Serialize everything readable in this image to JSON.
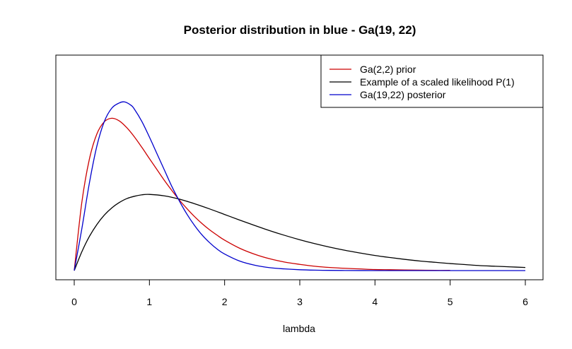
{
  "chart_data": {
    "type": "line",
    "title": "Posterior distribution in blue - Ga(19, 22)",
    "xlabel": "lambda",
    "ylabel": "",
    "xlim": [
      0,
      6
    ],
    "ylim": [
      0,
      1.0
    ],
    "x_ticks": [
      "0",
      "1",
      "2",
      "3",
      "4",
      "5",
      "6"
    ],
    "y_axis_shown": false,
    "grid": false,
    "legend_position": "top-right",
    "series": [
      {
        "name": "Ga(2,2) prior",
        "color": "#cc0000",
        "x": [
          0,
          0.1,
          0.2,
          0.3,
          0.4,
          0.5,
          0.6,
          0.7,
          0.8,
          0.9,
          1.0,
          1.1,
          1.2,
          1.3,
          1.4,
          1.5,
          1.6,
          1.7,
          1.8,
          1.9,
          2.0,
          2.2,
          2.4,
          2.6,
          2.8,
          3.0,
          3.2,
          3.4,
          3.6,
          3.8,
          4.0,
          4.2,
          4.4,
          4.6,
          4.8,
          5.0
        ],
        "y": [
          0,
          0.327,
          0.536,
          0.659,
          0.719,
          0.736,
          0.723,
          0.69,
          0.646,
          0.595,
          0.541,
          0.488,
          0.435,
          0.386,
          0.34,
          0.299,
          0.261,
          0.227,
          0.197,
          0.171,
          0.147,
          0.108,
          0.079,
          0.057,
          0.041,
          0.03,
          0.021,
          0.015,
          0.011,
          0.008,
          0.005,
          0.004,
          0.003,
          0.002,
          0.001,
          0.001
        ]
      },
      {
        "name": "Example of a scaled likelihood P(1)",
        "color": "#000000",
        "x": [
          0,
          0.1,
          0.2,
          0.3,
          0.4,
          0.5,
          0.6,
          0.7,
          0.8,
          0.9,
          1.0,
          1.2,
          1.4,
          1.6,
          1.8,
          2.0,
          2.2,
          2.4,
          2.6,
          2.8,
          3.0,
          3.2,
          3.4,
          3.6,
          3.8,
          4.0,
          4.2,
          4.4,
          4.6,
          4.8,
          5.0,
          5.2,
          5.4,
          5.6,
          5.8,
          6.0
        ],
        "y": [
          0,
          0.09,
          0.164,
          0.222,
          0.268,
          0.303,
          0.329,
          0.348,
          0.359,
          0.366,
          0.368,
          0.361,
          0.345,
          0.323,
          0.298,
          0.271,
          0.244,
          0.218,
          0.193,
          0.17,
          0.149,
          0.13,
          0.113,
          0.098,
          0.085,
          0.073,
          0.063,
          0.054,
          0.046,
          0.04,
          0.034,
          0.029,
          0.024,
          0.021,
          0.018,
          0.015
        ]
      },
      {
        "name": "Ga(19,22) posterior",
        "color": "#0000cc",
        "x": [
          0,
          0.1,
          0.2,
          0.3,
          0.4,
          0.5,
          0.6,
          0.67,
          0.75,
          0.8,
          0.9,
          1.0,
          1.1,
          1.2,
          1.3,
          1.4,
          1.5,
          1.6,
          1.7,
          1.8,
          1.9,
          2.0,
          2.2,
          2.4,
          2.6,
          2.8,
          3.0,
          3.2,
          3.4,
          3.6,
          3.8,
          4.0,
          4.5,
          5.0,
          5.5,
          6.0
        ],
        "y": [
          0,
          0.2,
          0.42,
          0.6,
          0.72,
          0.785,
          0.81,
          0.815,
          0.8,
          0.78,
          0.72,
          0.645,
          0.565,
          0.485,
          0.405,
          0.335,
          0.272,
          0.218,
          0.172,
          0.135,
          0.104,
          0.08,
          0.046,
          0.026,
          0.014,
          0.008,
          0.004,
          0.002,
          0.001,
          0.0005,
          0.0002,
          0.0001,
          0,
          0,
          0,
          0
        ]
      }
    ]
  }
}
